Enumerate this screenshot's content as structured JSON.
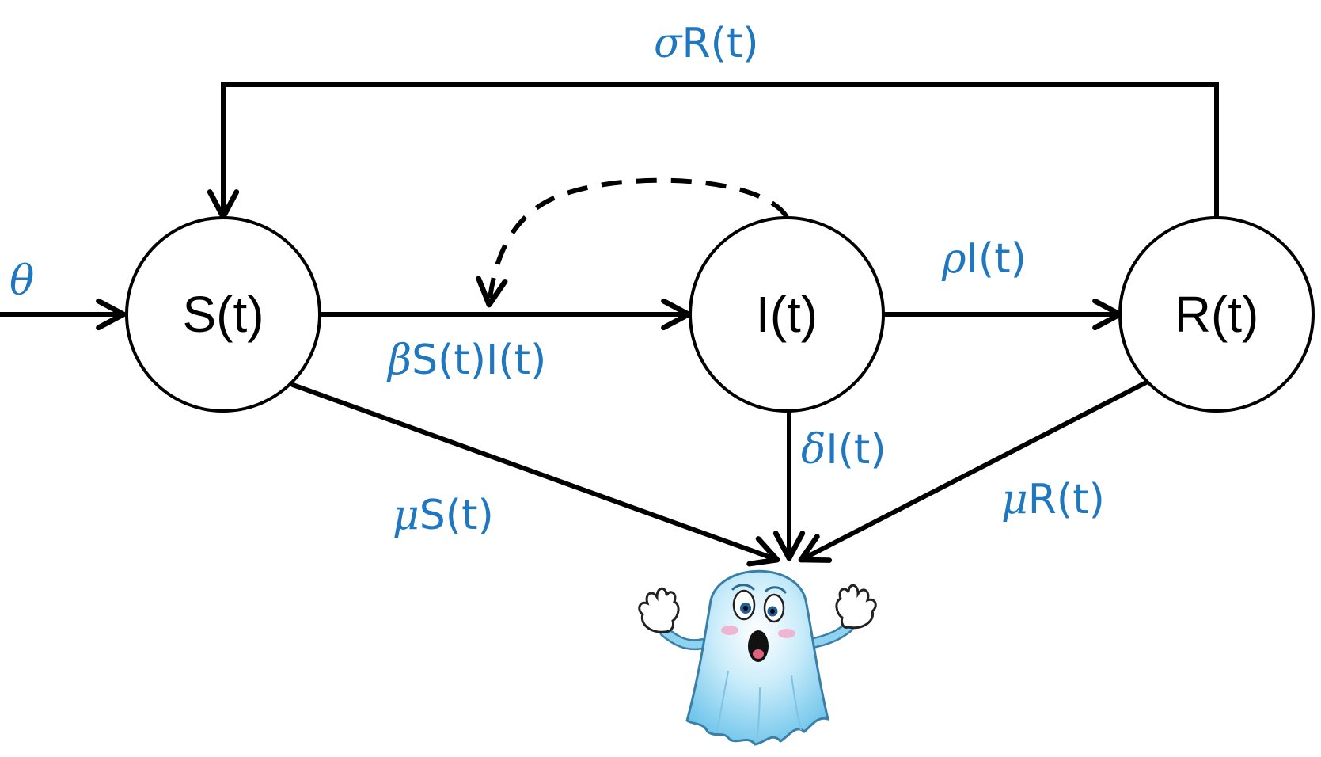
{
  "diagram": {
    "nodes": {
      "S": {
        "label": "S(t)"
      },
      "I": {
        "label": "I(t)"
      },
      "R": {
        "label": "R(t)"
      }
    },
    "rates": {
      "inflow": {
        "symbol": "θ",
        "text": ""
      },
      "loss": {
        "symbol": "σ",
        "text": "R(t)"
      },
      "infection": {
        "symbol": "β",
        "text": "S(t)I(t)"
      },
      "recovery": {
        "symbol": "ρ",
        "text": "I(t)"
      },
      "death_I": {
        "symbol": "δ",
        "text": "I(t)"
      },
      "death_S": {
        "symbol": "μ",
        "text": "S(t)"
      },
      "death_R": {
        "symbol": "μ",
        "text": "R(t)"
      }
    },
    "colors": {
      "rate_text": "#1f77c0",
      "stroke": "#000000",
      "ghost_body": "#8fd3f0",
      "ghost_outline": "#3a7fa8"
    },
    "icons": {
      "death": "ghost-icon"
    }
  }
}
